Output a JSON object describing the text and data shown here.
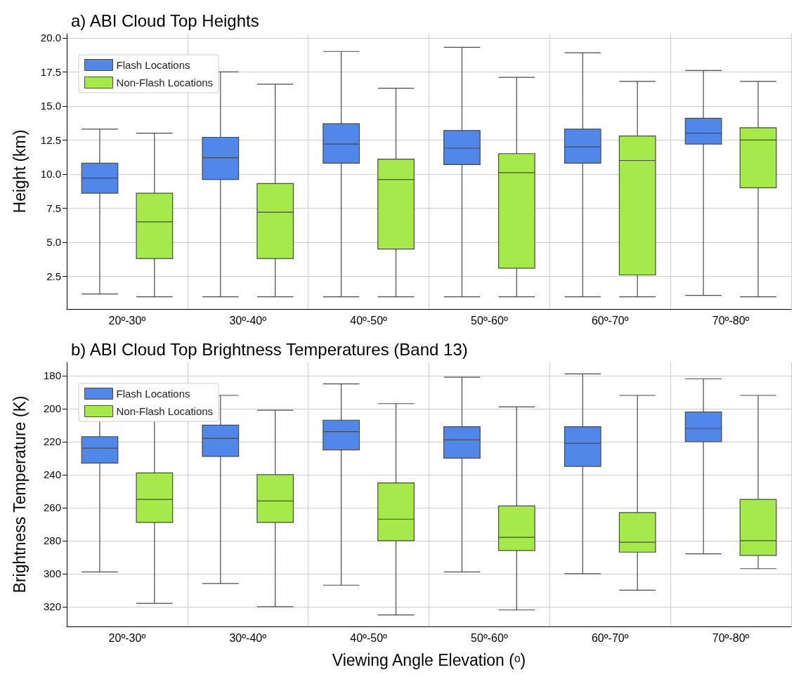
{
  "chart_data": [
    {
      "type": "box",
      "title": "a) ABI Cloud Top Heights",
      "ylabel": "Height (km)",
      "categories": [
        "20º-30º",
        "30º-40º",
        "40º-50º",
        "50º-60º",
        "60º-70º",
        "70º-80º"
      ],
      "ylim": [
        0.1,
        20.3
      ],
      "yticks": [
        2.5,
        {
          "value": 5,
          "label": "5.0"
        },
        7.5,
        {
          "value": 10,
          "label": "10.0"
        },
        12.5,
        {
          "value": 15,
          "label": "15.0"
        },
        17.5,
        {
          "value": 20,
          "label": "20.0"
        }
      ],
      "grid": true,
      "legend": "top left",
      "series": [
        {
          "name": "Flash Locations",
          "color": "#5087e8",
          "boxes": [
            {
              "low": 1.2,
              "q1": 8.6,
              "median": 9.7,
              "q3": 10.8,
              "high": 13.3
            },
            {
              "low": 1.0,
              "q1": 9.6,
              "median": 11.2,
              "q3": 12.7,
              "high": 17.5
            },
            {
              "low": 1.0,
              "q1": 10.8,
              "median": 12.2,
              "q3": 13.7,
              "high": 19.0
            },
            {
              "low": 1.0,
              "q1": 10.7,
              "median": 11.9,
              "q3": 13.2,
              "high": 19.3
            },
            {
              "low": 1.0,
              "q1": 10.8,
              "median": 12.0,
              "q3": 13.3,
              "high": 18.9
            },
            {
              "low": 1.1,
              "q1": 12.2,
              "median": 13.0,
              "q3": 14.1,
              "high": 17.6
            }
          ]
        },
        {
          "name": "Non-Flash Locations",
          "color": "#a5e94a",
          "boxes": [
            {
              "low": 1.0,
              "q1": 3.8,
              "median": 6.5,
              "q3": 8.6,
              "high": 13.0
            },
            {
              "low": 1.0,
              "q1": 3.8,
              "median": 7.2,
              "q3": 9.3,
              "high": 16.6
            },
            {
              "low": 1.0,
              "q1": 4.5,
              "median": 9.6,
              "q3": 11.1,
              "high": 16.3
            },
            {
              "low": 1.0,
              "q1": 3.1,
              "median": 10.1,
              "q3": 11.5,
              "high": 17.1
            },
            {
              "low": 1.0,
              "q1": 2.6,
              "median": 11.0,
              "q3": 12.8,
              "high": 16.8
            },
            {
              "low": 1.0,
              "q1": 9.0,
              "median": 12.5,
              "q3": 13.4,
              "high": 16.8
            }
          ]
        }
      ]
    },
    {
      "type": "box",
      "title": "b) ABI Cloud Top Brightness Temperatures (Band 13)",
      "ylabel": "Brightness Temperature (K)",
      "xlabel": "Viewing Angle Elevation (ᵒ)",
      "categories": [
        "20º-30º",
        "30º-40º",
        "40º-50º",
        "50º-60º",
        "60º-70º",
        "70º-80º"
      ],
      "ylim": [
        332,
        172
      ],
      "yticks": [
        180,
        200,
        220,
        240,
        260,
        280,
        300,
        320
      ],
      "grid": true,
      "legend": "top left",
      "series": [
        {
          "name": "Flash Locations",
          "color": "#5087e8",
          "boxes": [
            {
              "low": 202,
              "q1": 217,
              "median": 224,
              "q3": 233,
              "high": 299
            },
            {
              "low": 192,
              "q1": 210,
              "median": 218,
              "q3": 229,
              "high": 306
            },
            {
              "low": 185,
              "q1": 207,
              "median": 214,
              "q3": 225,
              "high": 307
            },
            {
              "low": 181,
              "q1": 211,
              "median": 219,
              "q3": 230,
              "high": 299
            },
            {
              "low": 179,
              "q1": 211,
              "median": 221,
              "q3": 235,
              "high": 300
            },
            {
              "low": 182,
              "q1": 202,
              "median": 212,
              "q3": 220,
              "high": 288
            }
          ]
        },
        {
          "name": "Non-Flash Locations",
          "color": "#a5e94a",
          "boxes": [
            {
              "low": 206,
              "q1": 239,
              "median": 255,
              "q3": 269,
              "high": 318
            },
            {
              "low": 201,
              "q1": 240,
              "median": 256,
              "q3": 269,
              "high": 320
            },
            {
              "low": 197,
              "q1": 245,
              "median": 267,
              "q3": 280,
              "high": 325
            },
            {
              "low": 199,
              "q1": 259,
              "median": 278,
              "q3": 286,
              "high": 322
            },
            {
              "low": 192,
              "q1": 263,
              "median": 281,
              "q3": 287,
              "high": 310
            },
            {
              "low": 192,
              "q1": 255,
              "median": 280,
              "q3": 289,
              "high": 297
            }
          ]
        }
      ]
    }
  ]
}
